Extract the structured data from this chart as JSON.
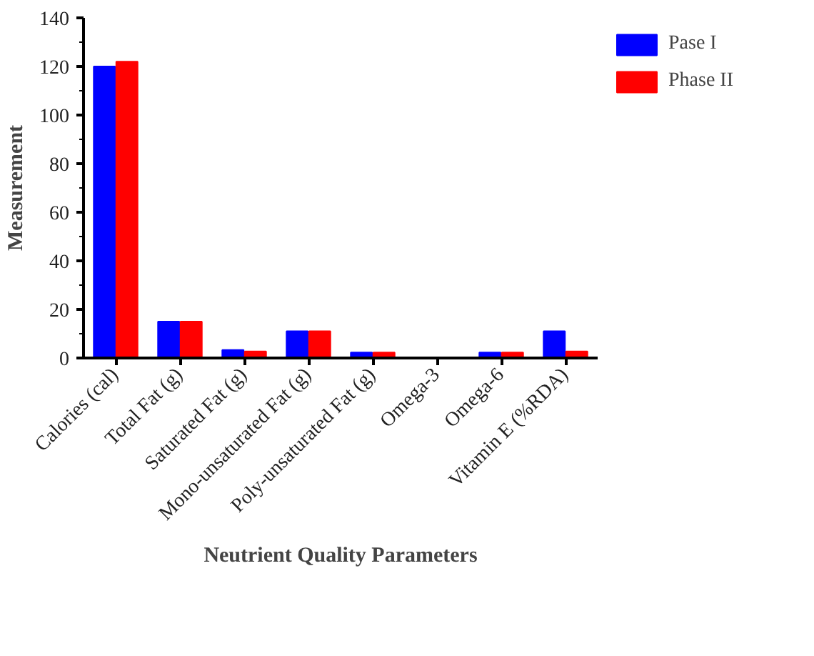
{
  "chart_data": {
    "type": "bar",
    "xlabel": "Neutrient Quality Parameters",
    "ylabel": "Measurement",
    "categories": [
      "Calories (cal)",
      "Total Fat (g)",
      "Saturated Fat (g)",
      "Mono-unsaturated Fat (g)",
      "Poly-unsaturated Fat (g)",
      "Omega-3",
      "Omega-6",
      "Vitamin E (%RDA)"
    ],
    "series": [
      {
        "name": "Pase I",
        "color": "#0000ff",
        "values": [
          120,
          15,
          3.3,
          11,
          2.3,
          0,
          2.3,
          11
        ]
      },
      {
        "name": "Phase II",
        "color": "#ff0000",
        "values": [
          122,
          15,
          2.7,
          11,
          2.3,
          0,
          2.3,
          2.7
        ]
      }
    ],
    "ylim": [
      0,
      140
    ],
    "yticks": [
      0,
      20,
      40,
      60,
      80,
      100,
      120,
      140
    ],
    "grid": false,
    "legend": "top right"
  }
}
